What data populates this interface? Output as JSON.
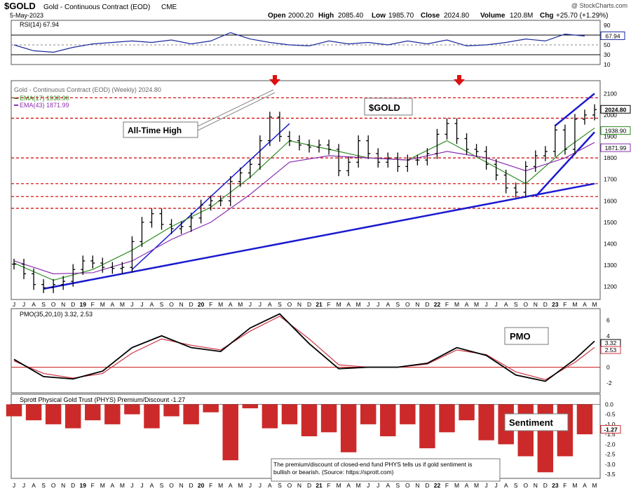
{
  "header": {
    "symbol": "$GOLD",
    "name": "Gold - Continuous Contract (EOD)",
    "exchange": "CME",
    "date": "5-May-2023",
    "open_label": "Open",
    "open": "2000.20",
    "high_label": "High",
    "high": "2085.40",
    "low_label": "Low",
    "low": "1985.70",
    "close_label": "Close",
    "close": "2024.80",
    "volume_label": "Volume",
    "volume": "120.8M",
    "chg_label": "Chg",
    "chg": "+25.70 (+1.29%)",
    "credit": "@ StockCharts.com"
  },
  "months": [
    "J",
    "J",
    "A",
    "S",
    "O",
    "N",
    "D",
    "19",
    "F",
    "M",
    "A",
    "M",
    "J",
    "J",
    "A",
    "S",
    "O",
    "N",
    "D",
    "20",
    "F",
    "M",
    "A",
    "M",
    "J",
    "J",
    "A",
    "S",
    "O",
    "N",
    "D",
    "21",
    "F",
    "M",
    "A",
    "M",
    "J",
    "J",
    "A",
    "S",
    "O",
    "N",
    "D",
    "22",
    "F",
    "M",
    "A",
    "M",
    "J",
    "J",
    "A",
    "S",
    "O",
    "N",
    "D",
    "23",
    "F",
    "M",
    "A",
    "M"
  ],
  "colors": {
    "price": "#000000",
    "ema17": "#2e8b22",
    "ema43": "#8b2fb0",
    "trend": "#1a1ad0",
    "resistance": "#cc0000",
    "rsi": "#1a2a9a",
    "hist": "#cc2a2a",
    "hist_pos": "#2e8b22",
    "pmo": "#000000",
    "pmo_signal": "#cc3344"
  },
  "annotations": {
    "all_time_high": "All-Time High",
    "gold_label": "$GOLD",
    "pmo_label": "PMO",
    "sentiment_label": "Sentiment",
    "note": "The premium/discount of closed-end fund PHYS tells us if gold sentiment is bullish or bearish. (Source: https://sprott.com)"
  },
  "chart_data": [
    {
      "type": "line",
      "title": "RSI(14) 67.94",
      "value": "67.94",
      "ylim": [
        10,
        100
      ],
      "yticks": [
        90,
        70,
        50,
        30,
        10
      ],
      "levels": [
        70,
        30
      ],
      "x": [
        0,
        2,
        4,
        6,
        8,
        10,
        12,
        14,
        16,
        18,
        20,
        22,
        24,
        26,
        28,
        30,
        32,
        34,
        36,
        38,
        40,
        42,
        44,
        46,
        48,
        50,
        52,
        54,
        56,
        58
      ],
      "values": [
        50,
        38,
        35,
        45,
        52,
        55,
        58,
        55,
        60,
        52,
        58,
        75,
        62,
        55,
        50,
        48,
        58,
        52,
        55,
        50,
        58,
        52,
        60,
        48,
        50,
        55,
        62,
        58,
        72,
        68
      ]
    },
    {
      "type": "candlestick",
      "title": "Gold - Continuous Contract (EOD) (Weekly) 2024.80",
      "legend": [
        {
          "name": "EMA(17) 1938.90"
        },
        {
          "name": "EMA(43) 1871.99"
        }
      ],
      "ylim": [
        1150,
        2150
      ],
      "yticks": [
        2100,
        2000,
        1900,
        1800,
        1700,
        1600,
        1500,
        1400,
        1300,
        1200
      ],
      "value_tags": [
        "2024.80",
        "1938.90",
        "1871.99"
      ],
      "resistance_levels": [
        2080,
        1985,
        1800,
        1680,
        1620,
        1565
      ],
      "series": [
        {
          "name": "price",
          "x": [
            0,
            1,
            2,
            3,
            4,
            5,
            6,
            7,
            8,
            9,
            10,
            11,
            12,
            13,
            14,
            15,
            16,
            17,
            18,
            19,
            20,
            21,
            22,
            23,
            24,
            25,
            26,
            27,
            28,
            29,
            30,
            31,
            32,
            33,
            34,
            35,
            36,
            37,
            38,
            39,
            40,
            41,
            42,
            43,
            44,
            45,
            46,
            47,
            48,
            49,
            50,
            51,
            52,
            53,
            54,
            55,
            56,
            57,
            58,
            59
          ],
          "values": [
            1305,
            1260,
            1210,
            1195,
            1210,
            1225,
            1280,
            1320,
            1310,
            1290,
            1285,
            1290,
            1410,
            1500,
            1540,
            1490,
            1470,
            1480,
            1520,
            1580,
            1600,
            1600,
            1690,
            1730,
            1770,
            1880,
            1990,
            1900,
            1880,
            1860,
            1850,
            1860,
            1840,
            1740,
            1780,
            1880,
            1820,
            1780,
            1800,
            1760,
            1790,
            1790,
            1820,
            1910,
            1960,
            1890,
            1840,
            1830,
            1770,
            1720,
            1660,
            1640,
            1760,
            1810,
            1830,
            1930,
            1840,
            1980,
            2000,
            2025
          ]
        },
        {
          "name": "EMA(17)",
          "x": [
            0,
            4,
            8,
            12,
            16,
            20,
            24,
            28,
            32,
            36,
            40,
            44,
            48,
            52,
            56,
            59
          ],
          "values": [
            1310,
            1230,
            1280,
            1370,
            1480,
            1570,
            1710,
            1880,
            1840,
            1800,
            1790,
            1880,
            1780,
            1680,
            1840,
            1939
          ]
        },
        {
          "name": "EMA(43)",
          "x": [
            0,
            4,
            8,
            12,
            16,
            20,
            24,
            28,
            32,
            36,
            40,
            44,
            48,
            52,
            56,
            59
          ],
          "values": [
            1320,
            1260,
            1265,
            1320,
            1420,
            1500,
            1630,
            1780,
            1810,
            1800,
            1790,
            1830,
            1800,
            1740,
            1800,
            1872
          ]
        }
      ]
    },
    {
      "type": "line",
      "title": "PMO(35,20,10) 3.32, 2.53",
      "ylim": [
        -3,
        7.2
      ],
      "yticks": [
        6,
        4,
        2,
        0,
        -2
      ],
      "value_tags": [
        "3.32",
        "2.53"
      ],
      "series": [
        {
          "name": "PMO",
          "x": [
            0,
            3,
            6,
            9,
            12,
            15,
            18,
            21,
            24,
            27,
            30,
            33,
            36,
            39,
            42,
            45,
            48,
            51,
            54,
            57,
            59
          ],
          "values": [
            1,
            -1.2,
            -1.5,
            -0.5,
            2.5,
            4,
            2.5,
            2,
            5,
            6.8,
            3,
            -0.2,
            0,
            0,
            0.5,
            2.5,
            1.5,
            -1,
            -1.8,
            1,
            3.32
          ]
        },
        {
          "name": "Signal",
          "x": [
            0,
            3,
            6,
            9,
            12,
            15,
            18,
            21,
            24,
            27,
            30,
            33,
            36,
            39,
            42,
            45,
            48,
            51,
            54,
            57,
            59
          ],
          "values": [
            0.8,
            -0.8,
            -1.4,
            -0.8,
            1.8,
            3.6,
            2.8,
            2.2,
            4.6,
            6.5,
            3.6,
            0.3,
            0,
            0,
            0.4,
            2.2,
            1.6,
            -0.6,
            -1.6,
            0.6,
            2.53
          ]
        }
      ]
    },
    {
      "type": "bar",
      "title": "Sprott Physical Gold Trust (PHYS) Premium/Discount -1.27",
      "value": "-1.27",
      "ylim": [
        -3.6,
        0.4
      ],
      "yticks": [
        0.0,
        -0.5,
        -1.0,
        -1.5,
        -2.0,
        -2.5,
        -3.0,
        -3.5
      ],
      "x": [
        0,
        2,
        4,
        6,
        8,
        10,
        12,
        14,
        16,
        18,
        20,
        22,
        24,
        26,
        28,
        30,
        32,
        34,
        36,
        38,
        40,
        42,
        44,
        46,
        48,
        50,
        52,
        54,
        56,
        58
      ],
      "values": [
        -0.6,
        -0.8,
        -1.0,
        -1.2,
        -0.8,
        -1.0,
        -0.5,
        -1.2,
        -0.6,
        -1.0,
        -0.4,
        -2.8,
        -0.2,
        -1.2,
        -1.0,
        -1.6,
        -1.4,
        -2.4,
        -1.0,
        -1.6,
        -1.0,
        -2.2,
        -1.4,
        -0.8,
        -1.8,
        -2.0,
        -2.6,
        -3.4,
        -2.6,
        -1.5
      ]
    }
  ]
}
